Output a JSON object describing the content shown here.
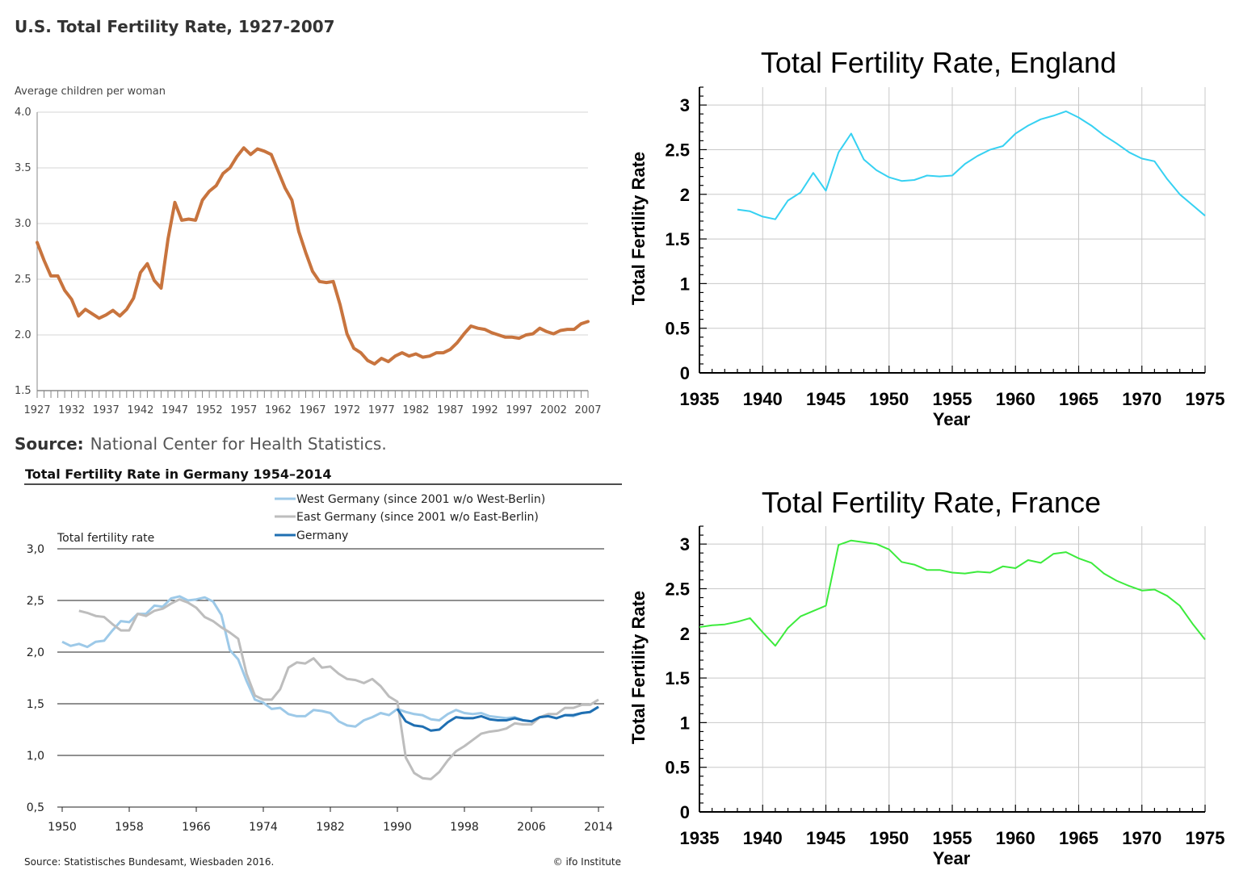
{
  "chart_data": [
    {
      "id": "us",
      "type": "line",
      "title": "U.S. Total Fertility Rate, 1927-2007",
      "ylabel": "Average children per woman",
      "xlabel": "",
      "source_label": "Source:",
      "source_text": "National Center for Health Statistics.",
      "yticks": [
        "4.0",
        "3.5",
        "3.0",
        "2.5",
        "2.0",
        "1.5"
      ],
      "xticks": [
        "1927",
        "1932",
        "1937",
        "1942",
        "1947",
        "1952",
        "1957",
        "1962",
        "1967",
        "1972",
        "1977",
        "1982",
        "1987",
        "1992",
        "1997",
        "2002",
        "2007"
      ],
      "xlim": [
        1927,
        2007
      ],
      "ylim": [
        1.5,
        4.0
      ],
      "grid": "horizontal",
      "color": "#C8743E",
      "series": [
        {
          "x": [
            1927,
            1928,
            1929,
            1930,
            1931,
            1932,
            1933,
            1934,
            1935,
            1936,
            1937,
            1938,
            1939,
            1940,
            1941,
            1942,
            1943,
            1944,
            1945,
            1946,
            1947,
            1948,
            1949,
            1950,
            1951,
            1952,
            1953,
            1954,
            1955,
            1956,
            1957,
            1958,
            1959,
            1960,
            1961,
            1962,
            1963,
            1964,
            1965,
            1966,
            1967,
            1968,
            1969,
            1970,
            1971,
            1972,
            1973,
            1974,
            1975,
            1976,
            1977,
            1978,
            1979,
            1980,
            1981,
            1982,
            1983,
            1984,
            1985,
            1986,
            1987,
            1988,
            1989,
            1990,
            1991,
            1992,
            1993,
            1994,
            1995,
            1996,
            1997,
            1998,
            1999,
            2000,
            2001,
            2002,
            2003,
            2004,
            2005,
            2006,
            2007
          ],
          "y": [
            2.83,
            2.67,
            2.53,
            2.53,
            2.4,
            2.32,
            2.17,
            2.23,
            2.19,
            2.15,
            2.18,
            2.22,
            2.17,
            2.23,
            2.33,
            2.56,
            2.64,
            2.49,
            2.42,
            2.86,
            3.19,
            3.03,
            3.04,
            3.03,
            3.21,
            3.29,
            3.34,
            3.45,
            3.5,
            3.6,
            3.68,
            3.62,
            3.67,
            3.65,
            3.62,
            3.47,
            3.32,
            3.21,
            2.93,
            2.74,
            2.57,
            2.48,
            2.47,
            2.48,
            2.27,
            2.01,
            1.88,
            1.84,
            1.77,
            1.74,
            1.79,
            1.76,
            1.81,
            1.84,
            1.81,
            1.83,
            1.8,
            1.81,
            1.84,
            1.84,
            1.87,
            1.93,
            2.01,
            2.08,
            2.06,
            2.05,
            2.02,
            2.0,
            1.98,
            1.98,
            1.97,
            2.0,
            2.01,
            2.06,
            2.03,
            2.01,
            2.04,
            2.05,
            2.05,
            2.1,
            2.12
          ]
        }
      ]
    },
    {
      "id": "england",
      "type": "line",
      "title": "Total Fertility Rate, England",
      "xlabel": "Year",
      "ylabel": "Total Fertility Rate",
      "xlim": [
        1935,
        1975
      ],
      "ylim": [
        0,
        3.2
      ],
      "xticks": [
        "1935",
        "1940",
        "1945",
        "1950",
        "1955",
        "1960",
        "1965",
        "1970",
        "1975"
      ],
      "yticks": [
        "0",
        "0.5",
        "1",
        "1.5",
        "2",
        "2.5",
        "3"
      ],
      "grid": "both",
      "color": "#36D1F2",
      "series": [
        {
          "x": [
            1938,
            1939,
            1940,
            1941,
            1942,
            1943,
            1944,
            1945,
            1946,
            1947,
            1948,
            1949,
            1950,
            1951,
            1952,
            1953,
            1954,
            1955,
            1956,
            1957,
            1958,
            1959,
            1960,
            1961,
            1962,
            1963,
            1964,
            1965,
            1966,
            1967,
            1968,
            1969,
            1970,
            1971,
            1972,
            1973,
            1974,
            1975
          ],
          "y": [
            1.83,
            1.81,
            1.75,
            1.72,
            1.93,
            2.02,
            2.24,
            2.04,
            2.47,
            2.68,
            2.39,
            2.27,
            2.19,
            2.15,
            2.16,
            2.21,
            2.2,
            2.21,
            2.34,
            2.43,
            2.5,
            2.54,
            2.68,
            2.77,
            2.84,
            2.88,
            2.93,
            2.86,
            2.77,
            2.66,
            2.57,
            2.47,
            2.4,
            2.37,
            2.17,
            2.0,
            1.88,
            1.76
          ]
        }
      ]
    },
    {
      "id": "germany",
      "type": "line",
      "title": "Total Fertility Rate in Germany 1954–2014",
      "ylabel": "Total fertility rate",
      "xlabel": "",
      "source_text": "Source: Statistisches Bundesamt, Wiesbaden 2016.",
      "credit": "© ifo Institute",
      "xlim": [
        1950,
        2014
      ],
      "ylim": [
        0.5,
        3.0
      ],
      "xticks": [
        "1950",
        "1958",
        "1966",
        "1974",
        "1982",
        "1990",
        "1998",
        "2006",
        "2014"
      ],
      "yticks": [
        "3,0",
        "2,5",
        "2,0",
        "1,5",
        "1,0",
        "0,5"
      ],
      "grid": "horizontal",
      "legend": "top-right",
      "series": [
        {
          "name": "West Germany (since 2001 w/o West-Berlin)",
          "color": "#9DC9E8",
          "x": [
            1950,
            1951,
            1952,
            1953,
            1954,
            1955,
            1956,
            1957,
            1958,
            1959,
            1960,
            1961,
            1962,
            1963,
            1964,
            1965,
            1966,
            1967,
            1968,
            1969,
            1970,
            1971,
            1972,
            1973,
            1974,
            1975,
            1976,
            1977,
            1978,
            1979,
            1980,
            1981,
            1982,
            1983,
            1984,
            1985,
            1986,
            1987,
            1988,
            1989,
            1990,
            1991,
            1992,
            1993,
            1994,
            1995,
            1996,
            1997,
            1998,
            1999,
            2000,
            2001,
            2002,
            2003,
            2004,
            2005,
            2006,
            2007,
            2008,
            2009,
            2010,
            2011,
            2012,
            2013,
            2014
          ],
          "y": [
            2.1,
            2.06,
            2.08,
            2.05,
            2.1,
            2.11,
            2.21,
            2.3,
            2.29,
            2.37,
            2.37,
            2.45,
            2.44,
            2.52,
            2.54,
            2.5,
            2.51,
            2.53,
            2.49,
            2.36,
            2.02,
            1.93,
            1.72,
            1.54,
            1.51,
            1.45,
            1.46,
            1.4,
            1.38,
            1.38,
            1.44,
            1.43,
            1.41,
            1.33,
            1.29,
            1.28,
            1.34,
            1.37,
            1.41,
            1.39,
            1.45,
            1.42,
            1.4,
            1.39,
            1.35,
            1.34,
            1.4,
            1.44,
            1.41,
            1.4,
            1.41,
            1.38,
            1.37,
            1.36,
            1.37,
            1.34,
            1.33,
            1.37,
            1.38,
            1.36,
            1.39,
            1.38,
            1.41,
            1.42,
            1.47
          ]
        },
        {
          "name": "East Germany (since 2001 w/o East-Berlin)",
          "color": "#BDBDBD",
          "x": [
            1952,
            1953,
            1954,
            1955,
            1956,
            1957,
            1958,
            1959,
            1960,
            1961,
            1962,
            1963,
            1964,
            1965,
            1966,
            1967,
            1968,
            1969,
            1970,
            1971,
            1972,
            1973,
            1974,
            1975,
            1976,
            1977,
            1978,
            1979,
            1980,
            1981,
            1982,
            1983,
            1984,
            1985,
            1986,
            1987,
            1988,
            1989,
            1990,
            1991,
            1992,
            1993,
            1994,
            1995,
            1996,
            1997,
            1998,
            1999,
            2000,
            2001,
            2002,
            2003,
            2004,
            2005,
            2006,
            2007,
            2008,
            2009,
            2010,
            2011,
            2012,
            2013,
            2014
          ],
          "y": [
            2.4,
            2.38,
            2.35,
            2.34,
            2.27,
            2.21,
            2.21,
            2.37,
            2.35,
            2.4,
            2.42,
            2.47,
            2.51,
            2.48,
            2.43,
            2.34,
            2.3,
            2.24,
            2.19,
            2.13,
            1.79,
            1.58,
            1.54,
            1.54,
            1.64,
            1.85,
            1.9,
            1.89,
            1.94,
            1.85,
            1.86,
            1.79,
            1.74,
            1.73,
            1.7,
            1.74,
            1.67,
            1.57,
            1.52,
            0.98,
            0.83,
            0.78,
            0.77,
            0.84,
            0.95,
            1.04,
            1.09,
            1.15,
            1.21,
            1.23,
            1.24,
            1.26,
            1.31,
            1.3,
            1.3,
            1.37,
            1.4,
            1.4,
            1.46,
            1.46,
            1.49,
            1.49,
            1.54
          ]
        },
        {
          "name": "Germany",
          "color": "#1F6FB2",
          "x": [
            1990,
            1991,
            1992,
            1993,
            1994,
            1995,
            1996,
            1997,
            1998,
            1999,
            2000,
            2001,
            2002,
            2003,
            2004,
            2005,
            2006,
            2007,
            2008,
            2009,
            2010,
            2011,
            2012,
            2013,
            2014
          ],
          "y": [
            1.45,
            1.33,
            1.29,
            1.28,
            1.24,
            1.25,
            1.32,
            1.37,
            1.36,
            1.36,
            1.38,
            1.35,
            1.34,
            1.34,
            1.36,
            1.34,
            1.33,
            1.37,
            1.38,
            1.36,
            1.39,
            1.39,
            1.41,
            1.42,
            1.47
          ]
        }
      ]
    },
    {
      "id": "france",
      "type": "line",
      "title": "Total Fertility Rate, France",
      "xlabel": "Year",
      "ylabel": "Total Fertility Rate",
      "xlim": [
        1935,
        1975
      ],
      "ylim": [
        0,
        3.2
      ],
      "xticks": [
        "1935",
        "1940",
        "1945",
        "1950",
        "1955",
        "1960",
        "1965",
        "1970",
        "1975"
      ],
      "yticks": [
        "0",
        "0.5",
        "1",
        "1.5",
        "2",
        "2.5",
        "3"
      ],
      "grid": "both",
      "color": "#3CEB3C",
      "series": [
        {
          "x": [
            1935,
            1936,
            1937,
            1938,
            1939,
            1940,
            1941,
            1942,
            1943,
            1944,
            1945,
            1946,
            1947,
            1948,
            1949,
            1950,
            1951,
            1952,
            1953,
            1954,
            1955,
            1956,
            1957,
            1958,
            1959,
            1960,
            1961,
            1962,
            1963,
            1964,
            1965,
            1966,
            1967,
            1968,
            1969,
            1970,
            1971,
            1972,
            1973,
            1974,
            1975
          ],
          "y": [
            2.07,
            2.09,
            2.1,
            2.13,
            2.17,
            2.01,
            1.86,
            2.06,
            2.19,
            2.25,
            2.31,
            2.99,
            3.04,
            3.02,
            3.0,
            2.94,
            2.8,
            2.77,
            2.71,
            2.71,
            2.68,
            2.67,
            2.69,
            2.68,
            2.75,
            2.73,
            2.82,
            2.79,
            2.89,
            2.91,
            2.84,
            2.79,
            2.67,
            2.59,
            2.53,
            2.48,
            2.49,
            2.42,
            2.31,
            2.11,
            1.93
          ]
        }
      ]
    }
  ]
}
